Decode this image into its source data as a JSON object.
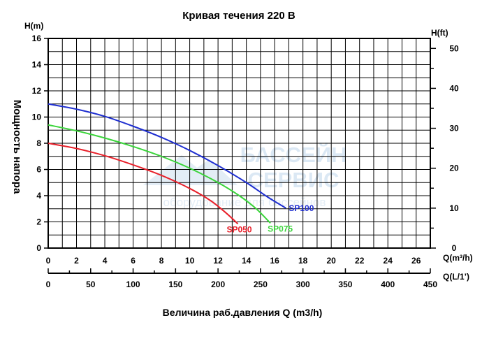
{
  "chart_data": {
    "type": "line",
    "title": "Кривая течения 220 В",
    "xlabel": "Величина раб.давления Q (m3/h)",
    "ylabel": "Мощность напора",
    "left_axis": {
      "label": "H(m)",
      "min": 0,
      "max": 16,
      "step": 2
    },
    "right_axis": {
      "label": "H(ft)",
      "min": 0,
      "max": 52.5,
      "ticks": [
        0,
        10,
        20,
        30,
        40,
        50
      ]
    },
    "x_axis": {
      "label": "Q(m³/h)",
      "min": 0,
      "max": 27,
      "ticks": [
        0,
        2,
        4,
        6,
        8,
        10,
        12,
        14,
        16,
        18,
        20,
        22,
        24,
        26
      ]
    },
    "x2_axis": {
      "label": "Q(L/1’)",
      "min": 0,
      "max": 450,
      "ticks": [
        0,
        50,
        100,
        150,
        200,
        250,
        300,
        350,
        400,
        450
      ]
    },
    "grid": true,
    "series": [
      {
        "name": "SP100",
        "color": "#1f2fd0",
        "points": [
          [
            0,
            11.0
          ],
          [
            2,
            10.6
          ],
          [
            4,
            10.05
          ],
          [
            6,
            9.3
          ],
          [
            8,
            8.45
          ],
          [
            10,
            7.45
          ],
          [
            12,
            6.3
          ],
          [
            14,
            5.0
          ],
          [
            15.5,
            3.9
          ],
          [
            16.8,
            3.05
          ]
        ]
      },
      {
        "name": "SP075",
        "color": "#3ad43a",
        "points": [
          [
            0,
            9.4
          ],
          [
            2,
            8.95
          ],
          [
            4,
            8.4
          ],
          [
            6,
            7.75
          ],
          [
            8,
            7.0
          ],
          [
            10,
            6.1
          ],
          [
            12,
            5.0
          ],
          [
            13.5,
            4.0
          ],
          [
            14.7,
            3.0
          ],
          [
            15.7,
            1.9
          ]
        ]
      },
      {
        "name": "SP050",
        "color": "#e8202a",
        "points": [
          [
            0,
            8.0
          ],
          [
            2,
            7.6
          ],
          [
            4,
            7.05
          ],
          [
            6,
            6.35
          ],
          [
            8,
            5.55
          ],
          [
            10,
            4.55
          ],
          [
            11.5,
            3.6
          ],
          [
            12.6,
            2.65
          ],
          [
            13.4,
            1.85
          ]
        ]
      }
    ]
  },
  "watermark": {
    "line1": "БАССЕЙН",
    "line2": "СЕРВИС",
    "line3": "оборудование для бассейнов"
  }
}
